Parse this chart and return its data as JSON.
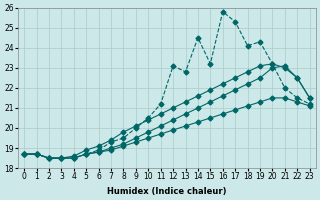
{
  "xlabel": "Humidex (Indice chaleur)",
  "ylabel": "",
  "background_color": "#cce8e8",
  "grid_color": "#aacccc",
  "line_color": "#006666",
  "xlim": [
    0,
    23
  ],
  "ylim": [
    18,
    26
  ],
  "yticks": [
    18,
    19,
    20,
    21,
    22,
    23,
    24,
    25,
    26
  ],
  "xticks": [
    0,
    1,
    2,
    3,
    4,
    5,
    6,
    7,
    8,
    9,
    10,
    11,
    12,
    13,
    14,
    15,
    16,
    17,
    18,
    19,
    20,
    21,
    22,
    23
  ],
  "series1_x": [
    0,
    1,
    2,
    3,
    4,
    5,
    6,
    7,
    8,
    9,
    10,
    11,
    12,
    13,
    14,
    15,
    16,
    17,
    18,
    19,
    20,
    21,
    22,
    23
  ],
  "series1_y": [
    18.7,
    18.7,
    18.5,
    18.5,
    18.5,
    18.7,
    18.9,
    19.3,
    19.5,
    20.0,
    20.5,
    21.2,
    23.1,
    22.8,
    24.5,
    23.2,
    25.8,
    25.3,
    24.1,
    24.3,
    23.2,
    22.0,
    21.5,
    21.2
  ],
  "series2_x": [
    0,
    1,
    2,
    3,
    4,
    5,
    6,
    7,
    8,
    9,
    10,
    11,
    12,
    13,
    14,
    15,
    16,
    17,
    18,
    19,
    20,
    21,
    22,
    23
  ],
  "series2_y": [
    18.7,
    18.7,
    18.5,
    18.5,
    18.6,
    18.9,
    19.1,
    19.4,
    19.8,
    20.1,
    20.4,
    20.7,
    21.0,
    21.3,
    21.6,
    21.9,
    22.2,
    22.5,
    22.8,
    23.1,
    23.2,
    23.0,
    22.5,
    21.5
  ],
  "series3_x": [
    0,
    1,
    2,
    3,
    4,
    5,
    6,
    7,
    8,
    9,
    10,
    11,
    12,
    13,
    14,
    15,
    16,
    17,
    18,
    19,
    20,
    21,
    22,
    23
  ],
  "series3_y": [
    18.7,
    18.7,
    18.5,
    18.5,
    18.5,
    18.7,
    18.8,
    19.0,
    19.2,
    19.5,
    19.8,
    20.1,
    20.4,
    20.7,
    21.0,
    21.3,
    21.6,
    21.9,
    22.2,
    22.5,
    23.0,
    23.1,
    22.5,
    21.5
  ],
  "series4_x": [
    0,
    1,
    2,
    3,
    4,
    5,
    6,
    7,
    8,
    9,
    10,
    11,
    12,
    13,
    14,
    15,
    16,
    17,
    18,
    19,
    20,
    21,
    22,
    23
  ],
  "series4_y": [
    18.7,
    18.7,
    18.5,
    18.5,
    18.5,
    18.7,
    18.8,
    18.9,
    19.1,
    19.3,
    19.5,
    19.7,
    19.9,
    20.1,
    20.3,
    20.5,
    20.7,
    20.9,
    21.1,
    21.3,
    21.5,
    21.5,
    21.3,
    21.1
  ]
}
